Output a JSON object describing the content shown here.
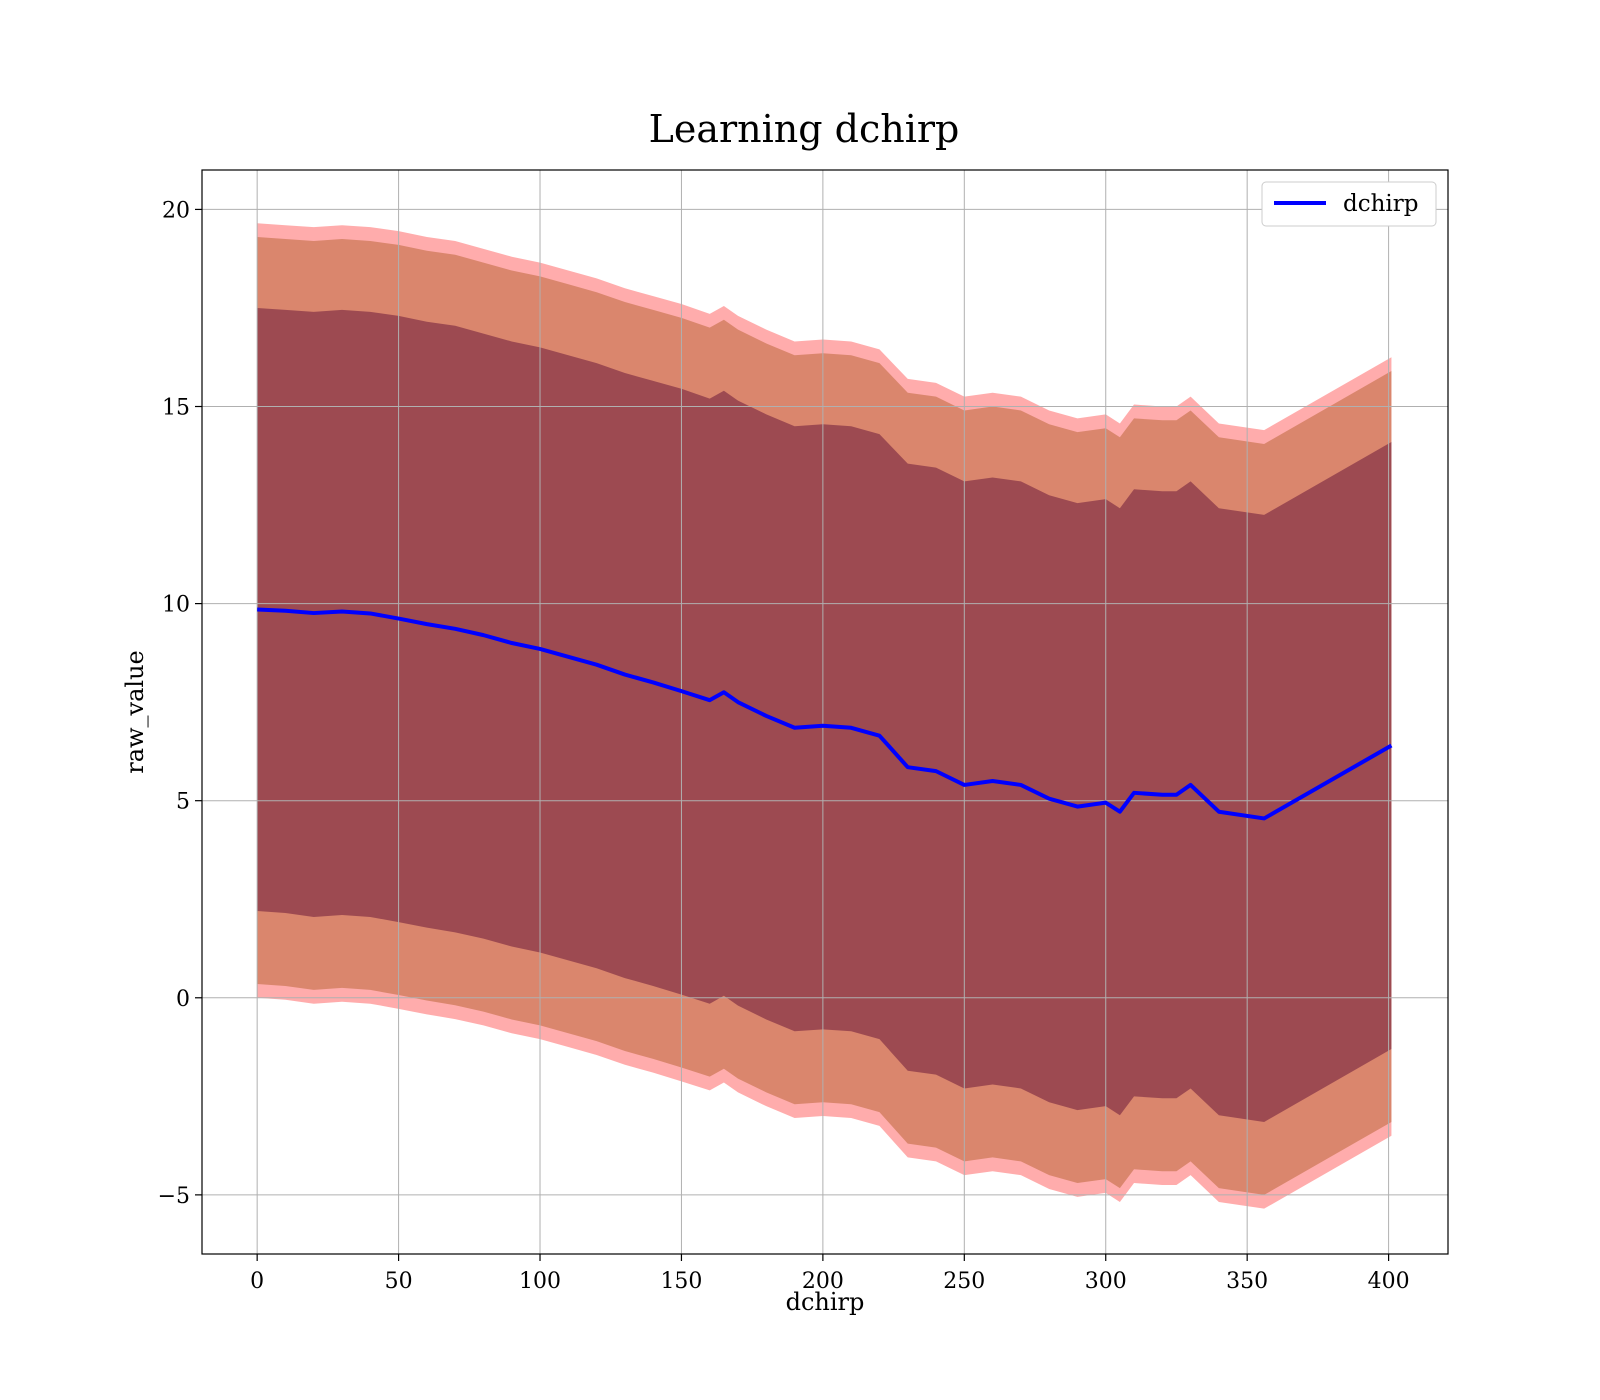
{
  "chart_data": {
    "type": "line",
    "title": "Learning dchirp",
    "xlabel": "dchirp",
    "ylabel": "raw_value",
    "xlim": [
      -19.5,
      421
    ],
    "ylim": [
      -6.5,
      21
    ],
    "xticks": [
      0,
      50,
      100,
      150,
      200,
      250,
      300,
      350,
      400
    ],
    "yticks": [
      -5,
      0,
      5,
      10,
      15,
      20
    ],
    "xtick_labels": [
      "0",
      "50",
      "100",
      "150",
      "200",
      "250",
      "300",
      "350",
      "400"
    ],
    "ytick_labels": [
      "−5",
      "0",
      "5",
      "10",
      "15",
      "20"
    ],
    "grid": true,
    "legend_position": "top-right",
    "x": [
      0,
      10,
      20,
      30,
      40,
      50,
      60,
      70,
      80,
      90,
      100,
      110,
      120,
      130,
      140,
      150,
      160,
      165,
      170,
      180,
      190,
      200,
      210,
      220,
      230,
      240,
      250,
      260,
      270,
      280,
      290,
      300,
      305,
      310,
      320,
      325,
      330,
      340,
      356,
      401
    ],
    "series": [
      {
        "name": "dchirp",
        "color": "#0000ff",
        "values": [
          9.85,
          9.82,
          9.76,
          9.8,
          9.75,
          9.62,
          9.48,
          9.36,
          9.2,
          9.0,
          8.85,
          8.65,
          8.45,
          8.2,
          8.0,
          7.78,
          7.55,
          7.75,
          7.5,
          7.15,
          6.85,
          6.9,
          6.85,
          6.65,
          5.85,
          5.75,
          5.4,
          5.5,
          5.4,
          5.05,
          4.85,
          4.95,
          4.72,
          5.2,
          5.15,
          5.15,
          5.4,
          4.72,
          4.55,
          6.4
        ]
      }
    ],
    "bands": [
      {
        "name": "inner",
        "color": "#6b1a3a",
        "lower": [
          2.2,
          2.15,
          2.05,
          2.1,
          2.05,
          1.92,
          1.78,
          1.66,
          1.5,
          1.3,
          1.15,
          0.95,
          0.75,
          0.5,
          0.3,
          0.08,
          -0.15,
          0.05,
          -0.2,
          -0.55,
          -0.85,
          -0.8,
          -0.85,
          -1.05,
          -1.85,
          -1.95,
          -2.3,
          -2.2,
          -2.3,
          -2.65,
          -2.85,
          -2.75,
          -2.98,
          -2.5,
          -2.55,
          -2.55,
          -2.3,
          -2.98,
          -3.15,
          -1.3
        ],
        "upper": [
          17.5,
          17.45,
          17.4,
          17.45,
          17.4,
          17.3,
          17.15,
          17.05,
          16.85,
          16.65,
          16.5,
          16.3,
          16.1,
          15.85,
          15.65,
          15.45,
          15.2,
          15.4,
          15.15,
          14.8,
          14.5,
          14.55,
          14.5,
          14.3,
          13.55,
          13.45,
          13.1,
          13.2,
          13.1,
          12.75,
          12.55,
          12.65,
          12.42,
          12.9,
          12.85,
          12.85,
          13.1,
          12.42,
          12.25,
          14.1
        ]
      },
      {
        "name": "middle",
        "color": "#b5602e",
        "lower": [
          0.35,
          0.3,
          0.2,
          0.25,
          0.2,
          0.07,
          -0.07,
          -0.19,
          -0.35,
          -0.55,
          -0.7,
          -0.9,
          -1.1,
          -1.35,
          -1.55,
          -1.77,
          -2.0,
          -1.8,
          -2.05,
          -2.4,
          -2.7,
          -2.65,
          -2.7,
          -2.9,
          -3.7,
          -3.8,
          -4.15,
          -4.05,
          -4.15,
          -4.5,
          -4.7,
          -4.6,
          -4.83,
          -4.35,
          -4.4,
          -4.4,
          -4.15,
          -4.83,
          -5.0,
          -3.15
        ],
        "upper": [
          19.3,
          19.25,
          19.2,
          19.25,
          19.2,
          19.1,
          18.95,
          18.85,
          18.65,
          18.45,
          18.3,
          18.1,
          17.9,
          17.65,
          17.45,
          17.25,
          17.0,
          17.2,
          16.95,
          16.6,
          16.3,
          16.35,
          16.3,
          16.1,
          15.35,
          15.25,
          14.9,
          15.0,
          14.9,
          14.55,
          14.35,
          14.45,
          14.22,
          14.7,
          14.65,
          14.65,
          14.9,
          14.22,
          14.05,
          15.9
        ]
      },
      {
        "name": "outer",
        "color": "#ff5a5a",
        "lower": [
          0.0,
          -0.05,
          -0.15,
          -0.1,
          -0.15,
          -0.28,
          -0.42,
          -0.54,
          -0.7,
          -0.9,
          -1.05,
          -1.25,
          -1.45,
          -1.7,
          -1.9,
          -2.12,
          -2.35,
          -2.15,
          -2.4,
          -2.75,
          -3.05,
          -3.0,
          -3.05,
          -3.25,
          -4.05,
          -4.15,
          -4.5,
          -4.4,
          -4.5,
          -4.85,
          -5.05,
          -4.95,
          -5.18,
          -4.7,
          -4.75,
          -4.75,
          -4.5,
          -5.18,
          -5.35,
          -3.5
        ],
        "upper": [
          19.65,
          19.6,
          19.55,
          19.6,
          19.55,
          19.45,
          19.3,
          19.2,
          19.0,
          18.8,
          18.65,
          18.45,
          18.25,
          18.0,
          17.8,
          17.6,
          17.35,
          17.55,
          17.3,
          16.95,
          16.65,
          16.7,
          16.65,
          16.45,
          15.7,
          15.6,
          15.25,
          15.35,
          15.25,
          14.9,
          14.7,
          14.8,
          14.57,
          15.05,
          15.0,
          15.0,
          15.25,
          14.57,
          14.4,
          16.25
        ]
      }
    ]
  }
}
